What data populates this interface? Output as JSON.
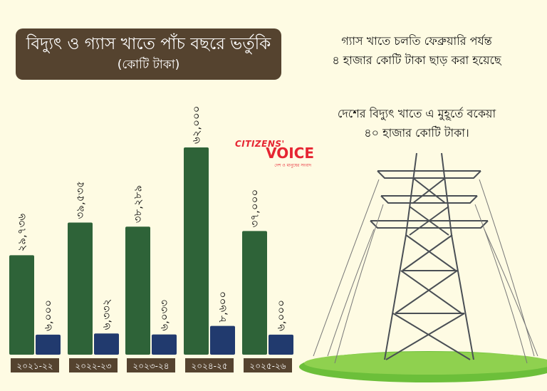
{
  "title": "বিদ্যুৎ ও গ্যাস খাতে পাঁচ বছরে ভর্তুকি",
  "subtitle": "(কোটি টাকা)",
  "notes": [
    [
      "গ্যাস খাতে চলতি ফেব্রুয়ারি পর্যন্ত",
      "৪ হাজার কোটি টাকা ছাড় করা হয়েছে"
    ],
    [
      "দেশের বিদ্যুৎ খাতে এ মুহূর্তে বকেয়া",
      "৪০ হাজার কোটি টাকা।"
    ]
  ],
  "logo": {
    "line1": "CITIZENS'",
    "line2": "VOICE",
    "tagline": "দেশ ও মানুষের সংবাদ"
  },
  "colors": {
    "background": "#fefbe3",
    "electricity": "#2e6338",
    "gas": "#213a6e",
    "label_box": "#55432f"
  },
  "chart_data": {
    "type": "bar",
    "title": "বিদ্যুৎ ও গ্যাস খাতে পাঁচ বছরে ভর্তুকি",
    "subtitle": "(কোটি টাকা)",
    "categories": [
      "২০২১-২২",
      "২০২২-২৩",
      "২০২৩-২৪",
      "২০২৪-২৫",
      "২০২৫-২৬"
    ],
    "series": [
      {
        "values": [
          29736,
          39535,
          38289,
          62000,
          37000
        ],
        "labels": [
          "২৯,৭৩৬",
          "৩৯,৫৩৫",
          "৩৮,২৮৯",
          "৬২,০০০",
          "৩৭,০০০"
        ],
        "color": "#2e6338"
      },
      {
        "values": [
          6000,
          6332,
          6033,
          8600,
          6000
        ],
        "labels": [
          "৬,০০০",
          "৬,৩৩২",
          "৬,০৩৩",
          "৮,৬০০",
          "৬,০০০"
        ],
        "color": "#213a6e"
      }
    ],
    "ylim": [
      0,
      62000
    ],
    "grid": false,
    "data_labels": "rotated-vertical"
  }
}
